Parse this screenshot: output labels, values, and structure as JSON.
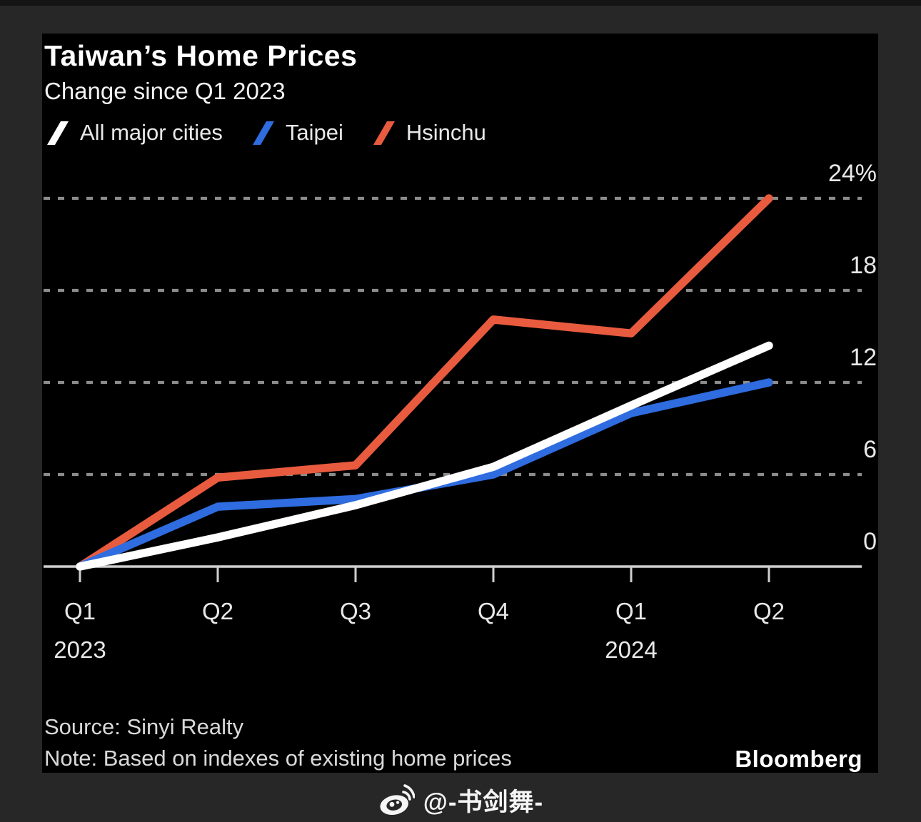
{
  "header": {
    "title": "Taiwan’s Home Prices",
    "subtitle": "Change since Q1 2023"
  },
  "legend": [
    {
      "label": "All major cities",
      "color": "#ffffff"
    },
    {
      "label": "Taipei",
      "color": "#2e6ce0"
    },
    {
      "label": "Hsinchu",
      "color": "#e85b3e"
    }
  ],
  "chart_data": {
    "type": "line",
    "title": "Taiwan’s Home Prices",
    "subtitle": "Change since Q1 2023",
    "unit": "%",
    "categories": [
      "Q1 2023",
      "Q2 2023",
      "Q3 2023",
      "Q4 2023",
      "Q1 2024",
      "Q2 2024"
    ],
    "x_tick_labels": [
      "Q1",
      "Q2",
      "Q3",
      "Q4",
      "Q1",
      "Q2"
    ],
    "x_year_labels": [
      {
        "index": 0,
        "label": "2023"
      },
      {
        "index": 4,
        "label": "2024"
      }
    ],
    "series": [
      {
        "name": "Hsinchu",
        "color": "#e85b3e",
        "values": [
          0,
          5.8,
          6.6,
          16.1,
          15.2,
          24.0
        ]
      },
      {
        "name": "Taipei",
        "color": "#2e6ce0",
        "values": [
          0,
          3.9,
          4.4,
          6.0,
          10.0,
          12.0
        ]
      },
      {
        "name": "All major cities",
        "color": "#ffffff",
        "values": [
          0,
          1.9,
          4.0,
          6.5,
          10.5,
          14.4
        ]
      }
    ],
    "y_ticks": [
      {
        "value": 0,
        "label": "0"
      },
      {
        "value": 6,
        "label": "6"
      },
      {
        "value": 12,
        "label": "12"
      },
      {
        "value": 18,
        "label": "18"
      },
      {
        "value": 24,
        "label": "24%"
      }
    ],
    "ylim": [
      0,
      24.5
    ],
    "grid": "horizontal-dashed",
    "grid_color": "#8c8c8c",
    "axis_color": "#cfcfcf",
    "tick_label_color": "#e8e8e8",
    "legend_position": "top"
  },
  "footer": {
    "source": "Source: Sinyi Realty",
    "note": "Note: Based on indexes of existing home prices",
    "logo": "Bloomberg"
  },
  "watermark": {
    "icon": "weibo-icon",
    "handle": "@-书剑舞-"
  }
}
